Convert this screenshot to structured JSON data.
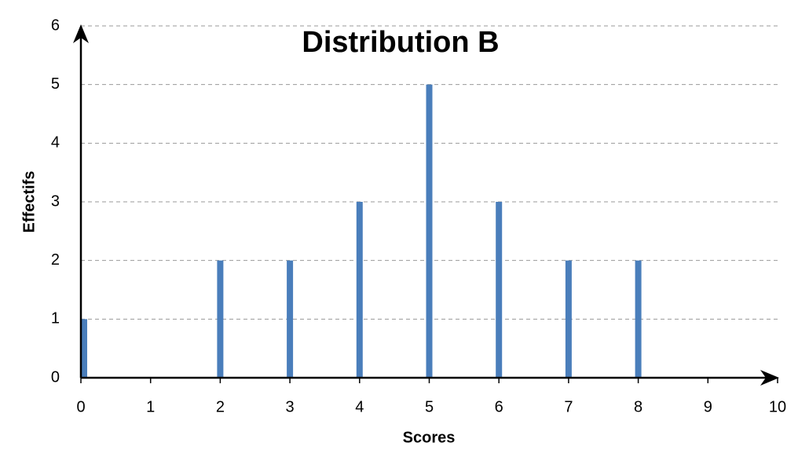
{
  "chart_data": {
    "type": "bar",
    "title": "Distribution B",
    "x_label": "Scores",
    "y_label": "Effectifs",
    "x": [
      0,
      2,
      3,
      4,
      5,
      6,
      7,
      8
    ],
    "values": [
      1,
      2,
      2,
      3,
      5,
      3,
      2,
      2
    ],
    "color": "#4a7ebb",
    "xlim": [
      0,
      10
    ],
    "xticks": [
      0,
      1,
      2,
      3,
      4,
      5,
      6,
      7,
      8,
      9,
      10
    ],
    "ylim": [
      0,
      6
    ],
    "yticks": [
      0,
      1,
      2,
      3,
      4,
      5,
      6
    ],
    "grid": true
  }
}
